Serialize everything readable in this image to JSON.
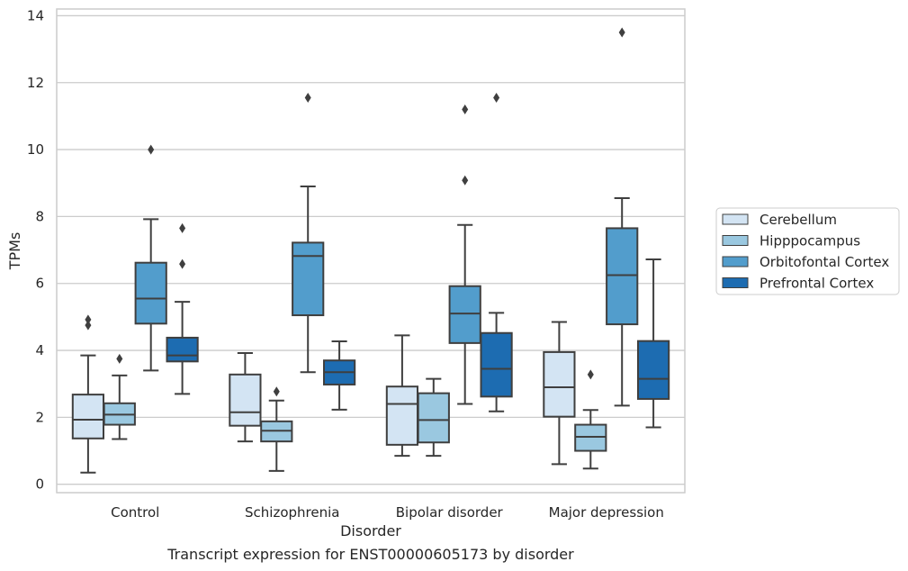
{
  "caption": "Transcript expression for ENST00000605173 by disorder",
  "chart_data": {
    "type": "boxplot",
    "xlabel": "Disorder",
    "ylabel": "TPMs",
    "ylim": [
      -0.25,
      14.2
    ],
    "yticks": [
      0,
      2,
      4,
      6,
      8,
      10,
      12,
      14
    ],
    "grid": "horizontal",
    "legend_placement": "right, outside, vertically centered",
    "categories": [
      "Control",
      "Schizophrenia",
      "Bipolar disorder",
      "Major depression"
    ],
    "series": [
      {
        "name": "Cerebellum",
        "color": "#d3e4f3",
        "boxes": [
          {
            "whisker_low": 0.35,
            "q1": 1.37,
            "median": 1.93,
            "q3": 2.68,
            "whisker_high": 3.85,
            "outliers": [
              4.75,
              4.92
            ]
          },
          {
            "whisker_low": 1.28,
            "q1": 1.75,
            "median": 2.15,
            "q3": 3.28,
            "whisker_high": 3.92,
            "outliers": []
          },
          {
            "whisker_low": 0.85,
            "q1": 1.18,
            "median": 2.4,
            "q3": 2.92,
            "whisker_high": 4.45,
            "outliers": []
          },
          {
            "whisker_low": 0.6,
            "q1": 2.02,
            "median": 2.9,
            "q3": 3.95,
            "whisker_high": 4.85,
            "outliers": []
          }
        ]
      },
      {
        "name": "Hipppocampus",
        "color": "#9ac8e0",
        "boxes": [
          {
            "whisker_low": 1.35,
            "q1": 1.78,
            "median": 2.08,
            "q3": 2.42,
            "whisker_high": 3.25,
            "outliers": [
              3.75
            ]
          },
          {
            "whisker_low": 0.4,
            "q1": 1.28,
            "median": 1.6,
            "q3": 1.88,
            "whisker_high": 2.5,
            "outliers": [
              2.77
            ]
          },
          {
            "whisker_low": 0.85,
            "q1": 1.25,
            "median": 1.92,
            "q3": 2.72,
            "whisker_high": 3.15,
            "outliers": []
          },
          {
            "whisker_low": 0.47,
            "q1": 1.0,
            "median": 1.42,
            "q3": 1.78,
            "whisker_high": 2.22,
            "outliers": [
              3.28
            ]
          }
        ]
      },
      {
        "name": "Orbitofontal Cortex",
        "color": "#529dcc",
        "boxes": [
          {
            "whisker_low": 3.4,
            "q1": 4.8,
            "median": 5.55,
            "q3": 6.62,
            "whisker_high": 7.92,
            "outliers": [
              10.0
            ]
          },
          {
            "whisker_low": 3.35,
            "q1": 5.05,
            "median": 6.82,
            "q3": 7.22,
            "whisker_high": 8.9,
            "outliers": [
              11.55
            ]
          },
          {
            "whisker_low": 2.4,
            "q1": 4.22,
            "median": 5.1,
            "q3": 5.92,
            "whisker_high": 7.75,
            "outliers": [
              9.08,
              11.2
            ]
          },
          {
            "whisker_low": 2.35,
            "q1": 4.78,
            "median": 6.25,
            "q3": 7.65,
            "whisker_high": 8.55,
            "outliers": [
              13.5
            ]
          }
        ]
      },
      {
        "name": "Prefrontal Cortex",
        "color": "#1d6cb1",
        "boxes": [
          {
            "whisker_low": 2.7,
            "q1": 3.67,
            "median": 3.85,
            "q3": 4.38,
            "whisker_high": 5.45,
            "outliers": [
              6.58,
              7.65
            ]
          },
          {
            "whisker_low": 2.23,
            "q1": 2.98,
            "median": 3.35,
            "q3": 3.7,
            "whisker_high": 4.27,
            "outliers": []
          },
          {
            "whisker_low": 2.18,
            "q1": 2.62,
            "median": 3.45,
            "q3": 4.52,
            "whisker_high": 5.12,
            "outliers": [
              11.55
            ]
          },
          {
            "whisker_low": 1.7,
            "q1": 2.55,
            "median": 3.15,
            "q3": 4.28,
            "whisker_high": 6.72,
            "outliers": []
          }
        ]
      }
    ]
  }
}
